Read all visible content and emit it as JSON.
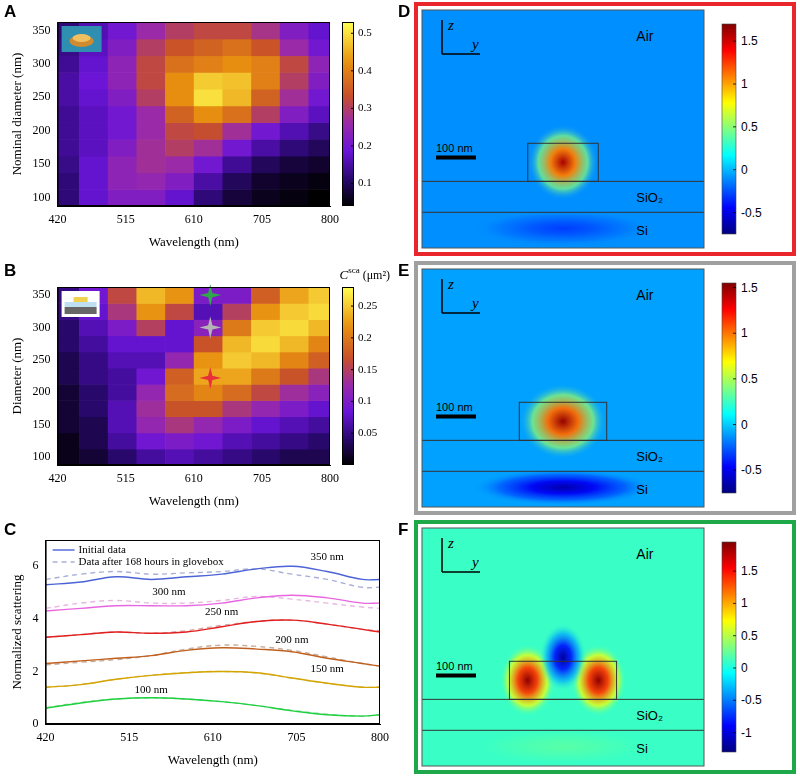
{
  "chart_data": [
    {
      "panel": "A",
      "type": "heatmap",
      "x_label": "Wavelength (nm)",
      "y_label": "Nominal diameter (nm)",
      "xlim": [
        420,
        800
      ],
      "xticks": [
        420,
        515,
        610,
        705,
        800
      ],
      "ylim": [
        87.5,
        362.5
      ],
      "yticks": [
        100,
        150,
        200,
        250,
        300,
        350
      ],
      "x": [
        430,
        470,
        510,
        550,
        590,
        630,
        670,
        710,
        750,
        790
      ],
      "y": [
        100,
        125,
        150,
        175,
        200,
        225,
        250,
        275,
        300,
        325,
        350
      ],
      "cells": [
        [
          0.12,
          0.18,
          0.22,
          0.22,
          0.18,
          0.12,
          0.08,
          0.06,
          0.05,
          0.04
        ],
        [
          0.12,
          0.18,
          0.24,
          0.25,
          0.22,
          0.15,
          0.1,
          0.07,
          0.06,
          0.05
        ],
        [
          0.13,
          0.18,
          0.24,
          0.27,
          0.26,
          0.2,
          0.14,
          0.1,
          0.08,
          0.07
        ],
        [
          0.14,
          0.17,
          0.22,
          0.27,
          0.3,
          0.27,
          0.2,
          0.15,
          0.12,
          0.1
        ],
        [
          0.14,
          0.17,
          0.2,
          0.26,
          0.32,
          0.33,
          0.27,
          0.2,
          0.16,
          0.13
        ],
        [
          0.14,
          0.17,
          0.2,
          0.26,
          0.36,
          0.42,
          0.38,
          0.3,
          0.22,
          0.17
        ],
        [
          0.15,
          0.18,
          0.22,
          0.3,
          0.42,
          0.5,
          0.46,
          0.36,
          0.27,
          0.2
        ],
        [
          0.15,
          0.19,
          0.24,
          0.32,
          0.42,
          0.48,
          0.47,
          0.4,
          0.3,
          0.22
        ],
        [
          0.14,
          0.18,
          0.24,
          0.32,
          0.38,
          0.4,
          0.42,
          0.4,
          0.32,
          0.24
        ],
        [
          0.13,
          0.17,
          0.22,
          0.3,
          0.34,
          0.36,
          0.38,
          0.34,
          0.26,
          0.2
        ],
        [
          0.12,
          0.16,
          0.2,
          0.26,
          0.3,
          0.32,
          0.32,
          0.28,
          0.22,
          0.18
        ]
      ],
      "colorbar": {
        "range": [
          0.04,
          0.53
        ],
        "ticks": [
          0.1,
          0.2,
          0.3,
          0.4,
          0.5
        ]
      }
    },
    {
      "panel": "B",
      "type": "heatmap",
      "x_label": "Wavelength (nm)",
      "y_label": "Diameter (nm)",
      "xlim": [
        420,
        800
      ],
      "xticks": [
        420,
        515,
        610,
        705,
        800
      ],
      "ylim": [
        87.5,
        362.5
      ],
      "yticks": [
        100,
        150,
        200,
        250,
        300,
        350
      ],
      "x": [
        430,
        470,
        510,
        550,
        590,
        630,
        670,
        710,
        750,
        790
      ],
      "y": [
        100,
        125,
        150,
        175,
        200,
        225,
        250,
        275,
        300,
        325,
        350
      ],
      "cells": [
        [
          0.01,
          0.02,
          0.04,
          0.06,
          0.07,
          0.06,
          0.05,
          0.04,
          0.03,
          0.03
        ],
        [
          0.01,
          0.03,
          0.06,
          0.09,
          0.1,
          0.09,
          0.07,
          0.06,
          0.05,
          0.04
        ],
        [
          0.02,
          0.03,
          0.07,
          0.12,
          0.14,
          0.12,
          0.1,
          0.08,
          0.07,
          0.06
        ],
        [
          0.02,
          0.04,
          0.07,
          0.13,
          0.17,
          0.17,
          0.14,
          0.12,
          0.1,
          0.08
        ],
        [
          0.02,
          0.04,
          0.06,
          0.12,
          0.19,
          0.21,
          0.19,
          0.16,
          0.13,
          0.11
        ],
        [
          0.03,
          0.05,
          0.06,
          0.09,
          0.18,
          0.23,
          0.23,
          0.2,
          0.17,
          0.14
        ],
        [
          0.03,
          0.05,
          0.07,
          0.07,
          0.12,
          0.22,
          0.25,
          0.24,
          0.21,
          0.18
        ],
        [
          0.04,
          0.06,
          0.08,
          0.08,
          0.08,
          0.17,
          0.24,
          0.26,
          0.24,
          0.21
        ],
        [
          0.04,
          0.07,
          0.1,
          0.15,
          0.08,
          0.11,
          0.2,
          0.25,
          0.26,
          0.24
        ],
        [
          0.05,
          0.08,
          0.14,
          0.22,
          0.16,
          0.07,
          0.15,
          0.22,
          0.25,
          0.26
        ],
        [
          0.05,
          0.09,
          0.16,
          0.24,
          0.22,
          0.1,
          0.1,
          0.18,
          0.23,
          0.25
        ]
      ],
      "colorbar": {
        "symbol": "C",
        "superscript": "sca",
        "unit": "(μm²)",
        "range": [
          0,
          0.28
        ],
        "ticks": [
          0.05,
          0.1,
          0.15,
          0.2,
          0.25
        ]
      },
      "markers": [
        {
          "x": 633,
          "y": 350,
          "color": "#2ea84a",
          "marker": "star"
        },
        {
          "x": 633,
          "y": 300,
          "color": "#b4b4b4",
          "marker": "star"
        },
        {
          "x": 633,
          "y": 222,
          "color": "#e8303a",
          "marker": "star"
        }
      ]
    },
    {
      "panel": "C",
      "type": "line",
      "x_label": "Wavelength (nm)",
      "y_label": "Normalized scattering",
      "xlim": [
        420,
        800
      ],
      "xticks": [
        420,
        515,
        610,
        705,
        800
      ],
      "ylim": [
        0,
        7
      ],
      "yticks": [
        0,
        2,
        4,
        6
      ],
      "legend": "top-left",
      "x": [
        420,
        460,
        500,
        540,
        580,
        620,
        660,
        700,
        740,
        780,
        800
      ],
      "series": [
        {
          "name": "Initial data",
          "color": "#4b63d6",
          "line_style": "solid",
          "values": [
            5.3,
            5.4,
            5.6,
            5.5,
            5.6,
            5.7,
            5.9,
            6.0,
            5.8,
            5.5,
            5.5
          ]
        },
        {
          "name": "Data after 168 hours in glovebox",
          "color": "#a9b0d8",
          "line_style": "dashed",
          "values": [
            5.5,
            5.7,
            5.8,
            5.7,
            5.75,
            5.8,
            5.9,
            5.7,
            5.5,
            5.2,
            5.2
          ]
        },
        {
          "name": "Initial data",
          "color": "#e866e0",
          "line_style": "solid",
          "values": [
            4.3,
            4.4,
            4.5,
            4.5,
            4.5,
            4.6,
            4.8,
            4.9,
            4.8,
            4.6,
            4.6
          ]
        },
        {
          "name": "Data after 168 hours in glovebox",
          "color": "#e6b8e2",
          "line_style": "dashed",
          "values": [
            4.4,
            4.6,
            4.7,
            4.6,
            4.6,
            4.7,
            4.85,
            4.75,
            4.6,
            4.45,
            4.4
          ]
        },
        {
          "name": "Initial data",
          "color": "#e02020",
          "line_style": "solid",
          "values": [
            3.3,
            3.4,
            3.5,
            3.45,
            3.5,
            3.7,
            3.9,
            3.95,
            3.8,
            3.6,
            3.5
          ]
        },
        {
          "name": "Data after 168 hours in glovebox",
          "color": "#e0a0a0",
          "line_style": "dashed",
          "values": [
            3.3,
            3.4,
            3.5,
            3.45,
            3.55,
            3.75,
            3.9,
            3.95,
            3.8,
            3.6,
            3.55
          ]
        },
        {
          "name": "Initial data",
          "color": "#c06020",
          "line_style": "solid",
          "values": [
            2.3,
            2.4,
            2.5,
            2.6,
            2.8,
            2.9,
            2.85,
            2.75,
            2.5,
            2.3,
            2.2
          ]
        },
        {
          "name": "Data after 168 hours in glovebox",
          "color": "#c8ab98",
          "line_style": "dashed",
          "values": [
            2.25,
            2.35,
            2.45,
            2.6,
            2.85,
            3.0,
            2.95,
            2.8,
            2.55,
            2.3,
            2.2
          ]
        },
        {
          "name": "Initial data",
          "color": "#d4a400",
          "line_style": "solid",
          "values": [
            1.4,
            1.5,
            1.7,
            1.85,
            1.95,
            2.0,
            1.95,
            1.75,
            1.55,
            1.4,
            1.4
          ]
        },
        {
          "name": "Data after 168 hours in glovebox",
          "color": "#d8cc90",
          "line_style": "dashed",
          "values": [
            1.4,
            1.5,
            1.7,
            1.86,
            1.96,
            2.0,
            1.94,
            1.74,
            1.55,
            1.4,
            1.42
          ]
        },
        {
          "name": "Initial data",
          "color": "#20d040",
          "line_style": "solid",
          "values": [
            0.6,
            0.8,
            0.95,
            1.0,
            0.95,
            0.85,
            0.7,
            0.5,
            0.35,
            0.3,
            0.35
          ]
        },
        {
          "name": "Data after 168 hours in glovebox",
          "color": "#98dca8",
          "line_style": "dashed",
          "values": [
            0.62,
            0.82,
            0.95,
            1.0,
            0.95,
            0.85,
            0.7,
            0.52,
            0.37,
            0.3,
            0.36
          ]
        }
      ],
      "annotations": [
        {
          "text": "350 nm",
          "x": 740,
          "y": 6.35
        },
        {
          "text": "300 nm",
          "x": 560,
          "y": 5.0
        },
        {
          "text": "250 nm",
          "x": 620,
          "y": 4.25
        },
        {
          "text": "200 nm",
          "x": 700,
          "y": 3.2
        },
        {
          "text": "150 nm",
          "x": 740,
          "y": 2.1
        },
        {
          "text": "100 nm",
          "x": 540,
          "y": 1.3
        }
      ]
    }
  ],
  "field_maps": [
    {
      "panel": "D",
      "type": "field_map",
      "frame_color": "#e8262b",
      "axis_labels": {
        "vertical": "z",
        "horizontal": "y"
      },
      "regions": {
        "air": "Air",
        "oxide": "SiO₂",
        "substrate": "Si"
      },
      "scale_bar": "100 nm",
      "colorbar": {
        "range": [
          -0.75,
          1.7
        ],
        "ticks": [
          -0.5,
          0,
          0.5,
          1,
          1.5
        ]
      },
      "field": {
        "background": -0.1,
        "disk": 1.6,
        "substrate": -0.3
      }
    },
    {
      "panel": "E",
      "type": "field_map",
      "frame_color": "#a0a0a0",
      "axis_labels": {
        "vertical": "z",
        "horizontal": "y"
      },
      "regions": {
        "air": "Air",
        "oxide": "SiO₂",
        "substrate": "Si"
      },
      "scale_bar": "100 nm",
      "colorbar": {
        "range": [
          -0.75,
          1.55
        ],
        "ticks": [
          -0.5,
          0,
          0.5,
          1,
          1.5
        ]
      },
      "field": {
        "background": -0.1,
        "disk": 1.5,
        "substrate": -0.65
      }
    },
    {
      "panel": "F",
      "type": "field_map",
      "frame_color": "#1fa84a",
      "axis_labels": {
        "vertical": "z",
        "horizontal": "y"
      },
      "regions": {
        "air": "Air",
        "oxide": "SiO₂",
        "substrate": "Si"
      },
      "scale_bar": "100 nm",
      "colorbar": {
        "range": [
          -1.3,
          1.95
        ],
        "ticks": [
          -1,
          -0.5,
          0,
          0.5,
          1,
          1.5
        ]
      },
      "field": {
        "background": 0.1,
        "lobes": 1.9,
        "above_disk": -1.2,
        "substrate": 0.2
      }
    }
  ]
}
